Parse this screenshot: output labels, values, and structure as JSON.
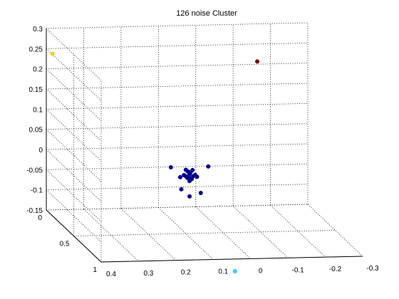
{
  "chart_data": {
    "type": "scatter3d",
    "title": "126 noise Cluster",
    "xlabel": "",
    "ylabel": "",
    "zlabel": "",
    "grid": true,
    "x_ticks": [
      "0.4",
      "0.3",
      "0.2",
      "0.1",
      "0",
      "-0.1",
      "-0.2",
      "-0.3"
    ],
    "y_ticks": [
      "0",
      "0.5",
      "1"
    ],
    "z_ticks": [
      "0.3",
      "0.25",
      "0.2",
      "0.15",
      "0.1",
      "0.05",
      "0",
      "-0.05",
      "-0.1",
      "-0.15"
    ],
    "xlim": [
      -0.3,
      0.4
    ],
    "ylim": [
      0,
      1
    ],
    "zlim": [
      -0.15,
      0.3
    ],
    "series": [
      {
        "color": "#00008f",
        "points": [
          {
            "x": 0.14,
            "y": 0.5,
            "z": 0.015
          },
          {
            "x": 0.04,
            "y": 0.5,
            "z": 0.015
          },
          {
            "x": 0.09,
            "y": 0.5,
            "z": -0.012
          },
          {
            "x": 0.08,
            "y": 0.5,
            "z": -0.008
          },
          {
            "x": 0.1,
            "y": 0.5,
            "z": -0.008
          },
          {
            "x": 0.09,
            "y": 0.5,
            "z": -0.003
          },
          {
            "x": 0.087,
            "y": 0.5,
            "z": 0.002
          },
          {
            "x": 0.095,
            "y": 0.5,
            "z": 0.004
          },
          {
            "x": 0.075,
            "y": 0.5,
            "z": -0.005
          },
          {
            "x": 0.105,
            "y": 0.5,
            "z": -0.005
          },
          {
            "x": 0.084,
            "y": 0.5,
            "z": -0.015
          },
          {
            "x": 0.096,
            "y": 0.5,
            "z": -0.012
          },
          {
            "x": 0.07,
            "y": 0.5,
            "z": -0.01
          },
          {
            "x": 0.09,
            "y": 0.5,
            "z": -0.02
          },
          {
            "x": 0.115,
            "y": 0.5,
            "z": -0.01
          },
          {
            "x": 0.112,
            "y": 0.5,
            "z": -0.04
          },
          {
            "x": 0.06,
            "y": 0.5,
            "z": -0.05
          },
          {
            "x": 0.09,
            "y": 0.5,
            "z": -0.058
          },
          {
            "x": 0.1,
            "y": 0.5,
            "z": 0.008
          },
          {
            "x": 0.082,
            "y": 0.5,
            "z": 0.007
          }
        ]
      },
      {
        "color": "#7f0000",
        "points": [
          {
            "x": -0.15,
            "y": 0.1,
            "z": 0.22
          }
        ]
      },
      {
        "color": "#ffcc00",
        "points": [
          {
            "x": 0.42,
            "y": 0.25,
            "z": 0.27
          }
        ]
      },
      {
        "color": "#33ccff",
        "points": [
          {
            "x": 0.02,
            "y": 0.85,
            "z": -0.2
          }
        ]
      }
    ]
  }
}
